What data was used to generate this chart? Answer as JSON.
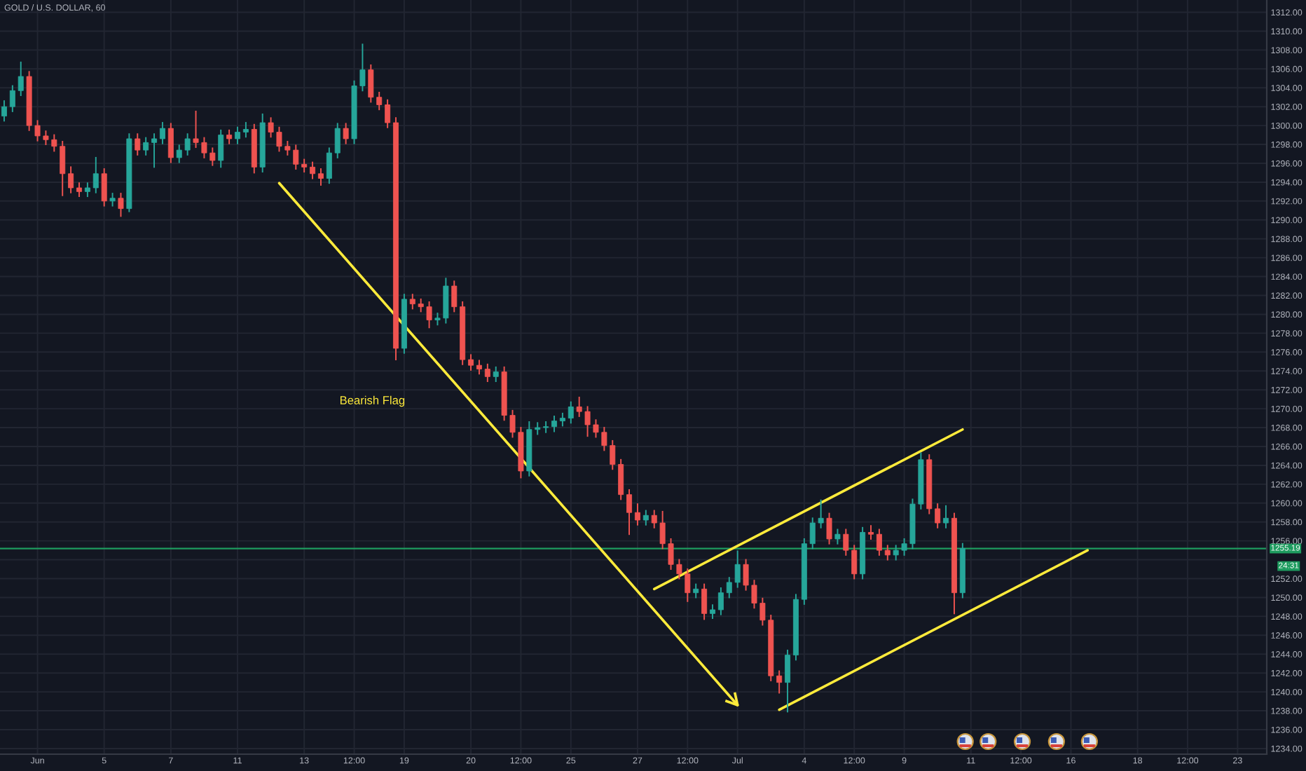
{
  "chart_data": {
    "type": "candlestick",
    "title": "GOLD / U.S. DOLLAR, 60",
    "categories": [
      null,
      null,
      null,
      null,
      "Jun",
      null,
      null,
      null,
      null,
      null,
      null,
      null,
      "5",
      null,
      null,
      null,
      null,
      null,
      null,
      null,
      "7",
      null,
      null,
      null,
      null,
      null,
      null,
      null,
      "11",
      null,
      null,
      null,
      null,
      null,
      null,
      null,
      "13",
      null,
      null,
      null,
      null,
      null,
      "12:00",
      null,
      null,
      null,
      null,
      null,
      "19",
      null,
      null,
      null,
      null,
      null,
      null,
      null,
      "20",
      null,
      null,
      null,
      null,
      null,
      "12:00",
      null,
      null,
      null,
      null,
      null,
      "25",
      null,
      null,
      null,
      null,
      null,
      null,
      null,
      "27",
      null,
      null,
      null,
      null,
      null,
      "12:00",
      null,
      null,
      null,
      null,
      null,
      "Jul",
      null,
      null,
      null,
      null,
      null,
      null,
      null,
      "4",
      null,
      null,
      null,
      null,
      null,
      "12:00",
      null,
      null,
      null,
      null,
      null,
      "9",
      null,
      null,
      null,
      null,
      null,
      null,
      null,
      "11",
      null,
      null,
      null,
      null,
      null,
      "12:00",
      null,
      null,
      null,
      null,
      null,
      "16",
      null,
      null,
      null,
      null,
      null,
      null,
      null,
      "18",
      null,
      null,
      null,
      null,
      null,
      "12:00",
      null,
      null,
      null,
      null,
      null,
      "23",
      null,
      null,
      null
    ],
    "ohlc": [
      [
        1301.0,
        1302.6,
        1300.5,
        1302.0
      ],
      [
        1302.0,
        1304.2,
        1301.5,
        1303.7
      ],
      [
        1303.7,
        1306.7,
        1303.2,
        1305.2
      ],
      [
        1305.2,
        1305.7,
        1299.5,
        1300.0
      ],
      [
        1300.0,
        1300.5,
        1298.4,
        1298.9
      ],
      [
        1298.9,
        1299.4,
        1298.0,
        1298.5
      ],
      [
        1298.5,
        1299.0,
        1297.3,
        1297.8
      ],
      [
        1297.8,
        1298.3,
        1292.6,
        1294.9
      ],
      [
        1294.9,
        1295.6,
        1292.9,
        1293.4
      ],
      [
        1293.4,
        1293.9,
        1292.5,
        1293.0
      ],
      [
        1293.0,
        1293.9,
        1292.5,
        1293.4
      ],
      [
        1293.4,
        1296.6,
        1292.9,
        1294.9
      ],
      [
        1294.9,
        1295.4,
        1291.5,
        1292.0
      ],
      [
        1292.0,
        1292.8,
        1291.5,
        1292.3
      ],
      [
        1292.3,
        1292.8,
        1290.4,
        1291.2
      ],
      [
        1291.2,
        1299.1,
        1290.9,
        1298.6
      ],
      [
        1298.6,
        1299.1,
        1296.9,
        1297.4
      ],
      [
        1297.4,
        1298.7,
        1296.9,
        1298.2
      ],
      [
        1298.2,
        1299.1,
        1295.6,
        1298.6
      ],
      [
        1298.6,
        1300.3,
        1298.1,
        1299.7
      ],
      [
        1299.7,
        1300.2,
        1296.1,
        1296.6
      ],
      [
        1296.6,
        1297.9,
        1296.1,
        1297.4
      ],
      [
        1297.4,
        1299.1,
        1296.9,
        1298.6
      ],
      [
        1298.6,
        1301.5,
        1297.7,
        1298.2
      ],
      [
        1298.2,
        1298.7,
        1296.6,
        1297.1
      ],
      [
        1297.1,
        1297.6,
        1295.8,
        1296.3
      ],
      [
        1296.3,
        1299.5,
        1295.6,
        1299.0
      ],
      [
        1299.0,
        1299.5,
        1298.1,
        1298.6
      ],
      [
        1298.6,
        1299.8,
        1298.1,
        1299.3
      ],
      [
        1299.3,
        1300.3,
        1298.8,
        1299.6
      ],
      [
        1299.6,
        1300.1,
        1295.0,
        1295.6
      ],
      [
        1295.6,
        1301.2,
        1295.1,
        1300.3
      ],
      [
        1300.3,
        1300.8,
        1298.8,
        1299.3
      ],
      [
        1299.3,
        1299.8,
        1297.3,
        1297.8
      ],
      [
        1297.8,
        1298.3,
        1296.9,
        1297.4
      ],
      [
        1297.4,
        1297.9,
        1295.4,
        1295.9
      ],
      [
        1295.9,
        1296.4,
        1295.1,
        1295.6
      ],
      [
        1295.6,
        1296.1,
        1294.4,
        1294.9
      ],
      [
        1294.9,
        1295.4,
        1293.7,
        1294.4
      ],
      [
        1294.4,
        1297.6,
        1293.9,
        1297.1
      ],
      [
        1297.1,
        1300.2,
        1296.6,
        1299.7
      ],
      [
        1299.7,
        1300.2,
        1298.1,
        1298.6
      ],
      [
        1298.6,
        1304.7,
        1298.1,
        1304.2
      ],
      [
        1304.2,
        1308.6,
        1303.7,
        1305.9
      ],
      [
        1305.9,
        1306.4,
        1302.5,
        1303.0
      ],
      [
        1303.0,
        1303.5,
        1301.7,
        1302.2
      ],
      [
        1302.2,
        1302.7,
        1299.8,
        1300.3
      ],
      [
        1300.3,
        1300.8,
        1275.2,
        1276.4
      ],
      [
        1276.4,
        1282.1,
        1275.9,
        1281.6
      ],
      [
        1281.6,
        1282.1,
        1280.6,
        1281.1
      ],
      [
        1281.1,
        1281.6,
        1280.3,
        1280.8
      ],
      [
        1280.8,
        1281.3,
        1278.6,
        1279.4
      ],
      [
        1279.4,
        1280.1,
        1278.9,
        1279.6
      ],
      [
        1279.6,
        1283.8,
        1279.1,
        1283.0
      ],
      [
        1283.0,
        1283.5,
        1280.3,
        1280.8
      ],
      [
        1280.8,
        1281.3,
        1274.7,
        1275.2
      ],
      [
        1275.2,
        1275.7,
        1274.1,
        1274.6
      ],
      [
        1274.6,
        1275.1,
        1273.7,
        1274.2
      ],
      [
        1274.2,
        1274.7,
        1272.9,
        1273.4
      ],
      [
        1273.4,
        1274.4,
        1272.9,
        1273.9
      ],
      [
        1273.9,
        1274.4,
        1268.8,
        1269.3
      ],
      [
        1269.3,
        1269.8,
        1267.0,
        1267.5
      ],
      [
        1267.5,
        1268.0,
        1262.7,
        1263.4
      ],
      [
        1263.4,
        1268.6,
        1262.9,
        1267.8
      ],
      [
        1267.8,
        1268.5,
        1267.3,
        1268.0
      ],
      [
        1268.0,
        1268.6,
        1267.5,
        1268.1
      ],
      [
        1268.1,
        1269.2,
        1267.6,
        1268.7
      ],
      [
        1268.7,
        1269.5,
        1268.2,
        1269.0
      ],
      [
        1269.0,
        1270.7,
        1268.5,
        1270.2
      ],
      [
        1270.2,
        1271.2,
        1269.2,
        1269.7
      ],
      [
        1269.7,
        1270.2,
        1267.1,
        1268.3
      ],
      [
        1268.3,
        1268.8,
        1267.0,
        1267.5
      ],
      [
        1267.5,
        1268.0,
        1265.6,
        1266.1
      ],
      [
        1266.1,
        1266.6,
        1263.6,
        1264.1
      ],
      [
        1264.1,
        1264.6,
        1260.4,
        1260.9
      ],
      [
        1260.9,
        1261.4,
        1256.7,
        1259.0
      ],
      [
        1259.0,
        1259.9,
        1257.7,
        1258.2
      ],
      [
        1258.2,
        1259.2,
        1257.7,
        1258.7
      ],
      [
        1258.7,
        1259.2,
        1257.4,
        1257.9
      ],
      [
        1257.9,
        1259.1,
        1255.2,
        1255.7
      ],
      [
        1255.7,
        1256.2,
        1253.0,
        1253.5
      ],
      [
        1253.5,
        1254.0,
        1252.0,
        1252.5
      ],
      [
        1252.5,
        1253.0,
        1249.6,
        1250.5
      ],
      [
        1250.5,
        1251.4,
        1250.0,
        1250.9
      ],
      [
        1250.9,
        1251.4,
        1247.7,
        1248.3
      ],
      [
        1248.3,
        1249.2,
        1247.8,
        1248.7
      ],
      [
        1248.7,
        1251.0,
        1248.2,
        1250.5
      ],
      [
        1250.5,
        1252.1,
        1250.0,
        1251.6
      ],
      [
        1251.6,
        1254.9,
        1251.1,
        1253.5
      ],
      [
        1253.5,
        1254.0,
        1250.8,
        1251.3
      ],
      [
        1251.3,
        1251.8,
        1248.9,
        1249.4
      ],
      [
        1249.4,
        1249.9,
        1247.1,
        1247.6
      ],
      [
        1247.6,
        1248.1,
        1241.2,
        1241.7
      ],
      [
        1241.7,
        1242.2,
        1239.9,
        1241.0
      ],
      [
        1241.0,
        1244.4,
        1237.9,
        1243.9
      ],
      [
        1243.9,
        1250.3,
        1243.4,
        1249.8
      ],
      [
        1249.8,
        1256.2,
        1249.3,
        1255.7
      ],
      [
        1255.7,
        1258.4,
        1255.2,
        1257.9
      ],
      [
        1257.9,
        1260.3,
        1257.4,
        1258.4
      ],
      [
        1258.4,
        1258.9,
        1255.7,
        1256.2
      ],
      [
        1256.2,
        1257.2,
        1255.7,
        1256.7
      ],
      [
        1256.7,
        1257.2,
        1254.5,
        1255.0
      ],
      [
        1255.0,
        1255.5,
        1252.0,
        1252.5
      ],
      [
        1252.5,
        1257.4,
        1252.0,
        1256.9
      ],
      [
        1256.9,
        1257.6,
        1256.2,
        1256.7
      ],
      [
        1256.7,
        1257.2,
        1254.5,
        1255.0
      ],
      [
        1255.0,
        1255.5,
        1254.0,
        1254.5
      ],
      [
        1254.5,
        1255.5,
        1254.0,
        1255.0
      ],
      [
        1255.0,
        1256.2,
        1254.5,
        1255.7
      ],
      [
        1255.7,
        1260.4,
        1255.2,
        1259.9
      ],
      [
        1259.9,
        1265.3,
        1259.4,
        1264.6
      ],
      [
        1264.6,
        1265.1,
        1258.9,
        1259.4
      ],
      [
        1259.4,
        1259.9,
        1257.4,
        1257.9
      ],
      [
        1257.9,
        1259.7,
        1257.4,
        1258.4
      ],
      [
        1258.4,
        1258.9,
        1248.3,
        1250.5
      ],
      [
        1250.5,
        1255.7,
        1250.0,
        1255.2
      ],
      null,
      null,
      null,
      null,
      null,
      null,
      null,
      null,
      null,
      null,
      null,
      null,
      null,
      null,
      null,
      null,
      null,
      null,
      null,
      null,
      null,
      null,
      null,
      null,
      null,
      null,
      null,
      null,
      null,
      null,
      null,
      null,
      null,
      null,
      null,
      null
    ],
    "colors": [
      "#26a69a",
      "#26a69a",
      "#26a69a",
      "#ef5350",
      "#ef5350",
      "#ef5350",
      "#ef5350",
      "#ef5350",
      "#ef5350",
      "#ef5350",
      "#26a69a",
      "#26a69a",
      "#ef5350",
      "#26a69a",
      "#ef5350",
      "#26a69a",
      "#ef5350",
      "#26a69a",
      "#26a69a",
      "#26a69a",
      "#ef5350",
      "#26a69a",
      "#26a69a",
      "#ef5350",
      "#ef5350",
      "#ef5350",
      "#26a69a",
      "#ef5350",
      "#26a69a",
      "#26a69a",
      "#ef5350",
      "#26a69a",
      "#ef5350",
      "#ef5350",
      "#ef5350",
      "#ef5350",
      "#ef5350",
      "#ef5350",
      "#ef5350",
      "#26a69a",
      "#26a69a",
      "#ef5350",
      "#26a69a",
      "#26a69a",
      "#ef5350",
      "#ef5350",
      "#ef5350",
      "#ef5350",
      "#26a69a",
      "#ef5350",
      "#ef5350",
      "#ef5350",
      "#26a69a",
      "#26a69a",
      "#ef5350",
      "#ef5350",
      "#ef5350",
      "#ef5350",
      "#ef5350",
      "#26a69a",
      "#ef5350",
      "#ef5350",
      "#ef5350",
      "#26a69a",
      "#26a69a",
      "#26a69a",
      "#26a69a",
      "#26a69a",
      "#26a69a",
      "#ef5350",
      "#ef5350",
      "#ef5350",
      "#ef5350",
      "#ef5350",
      "#ef5350",
      "#ef5350",
      "#ef5350",
      "#26a69a",
      "#ef5350",
      "#ef5350",
      "#ef5350",
      "#ef5350",
      "#ef5350",
      "#26a69a",
      "#ef5350",
      "#26a69a",
      "#26a69a",
      "#26a69a",
      "#26a69a",
      "#ef5350",
      "#ef5350",
      "#ef5350",
      "#ef5350",
      "#ef5350",
      "#26a69a",
      "#26a69a",
      "#26a69a",
      "#26a69a",
      "#26a69a",
      "#ef5350",
      "#26a69a",
      "#ef5350",
      "#ef5350",
      "#26a69a",
      "#ef5350",
      "#ef5350",
      "#ef5350",
      "#26a69a",
      "#26a69a",
      "#26a69a",
      "#26a69a",
      "#ef5350",
      "#ef5350",
      "#26a69a",
      "#ef5350",
      "#26a69a",
      null,
      null,
      null,
      null,
      null,
      null,
      null,
      null,
      null,
      null,
      null,
      null,
      null,
      null,
      null,
      null,
      null,
      null,
      null,
      null,
      null,
      null,
      null,
      null,
      null,
      null,
      null,
      null,
      null,
      null,
      null,
      null,
      null,
      null,
      null,
      null
    ],
    "series": [
      {
        "type": "line",
        "color": "#ffeb3b",
        "values": [
          null,
          null,
          null,
          null,
          null,
          null,
          null,
          null,
          null,
          null,
          null,
          null,
          null,
          null,
          null,
          null,
          null,
          null,
          null,
          null,
          null,
          null,
          null,
          null,
          null,
          null,
          null,
          null,
          null,
          null,
          null,
          null,
          null,
          1293.9,
          null,
          null,
          null,
          null,
          null,
          null,
          null,
          null,
          null,
          null,
          null,
          null,
          null,
          null,
          null,
          null,
          null,
          null,
          null,
          null,
          null,
          null,
          null,
          null,
          null,
          null,
          null,
          null,
          null,
          null,
          null,
          null,
          null,
          null,
          null,
          null,
          null,
          null,
          null,
          null,
          null,
          null,
          null,
          null,
          null,
          null,
          null,
          null,
          null,
          null,
          null,
          null,
          null,
          null,
          1238.6,
          null,
          null,
          null,
          null,
          null,
          null,
          null,
          null,
          null,
          null,
          null,
          null,
          null,
          null,
          null,
          null,
          null,
          null,
          null,
          null,
          null,
          null,
          null,
          null,
          null,
          null,
          null,
          null,
          null,
          null,
          null,
          null,
          null,
          null,
          null,
          null,
          null,
          null,
          null,
          null,
          null,
          null,
          null,
          null,
          null,
          null,
          null,
          null,
          null,
          null,
          null,
          null,
          null,
          null,
          null,
          null,
          null,
          null,
          null,
          null,
          null,
          null,
          null
        ]
      },
      {
        "type": "line",
        "color": "#ffeb3b",
        "values": [
          null,
          null,
          null,
          null,
          null,
          null,
          null,
          null,
          null,
          null,
          null,
          null,
          null,
          null,
          null,
          null,
          null,
          null,
          null,
          null,
          null,
          null,
          null,
          null,
          null,
          null,
          null,
          null,
          null,
          null,
          null,
          null,
          null,
          null,
          null,
          null,
          null,
          null,
          null,
          null,
          null,
          null,
          null,
          null,
          null,
          null,
          null,
          null,
          null,
          null,
          null,
          null,
          null,
          null,
          null,
          null,
          null,
          null,
          null,
          null,
          null,
          null,
          null,
          null,
          null,
          null,
          null,
          null,
          null,
          null,
          null,
          null,
          null,
          null,
          null,
          null,
          null,
          null,
          1250.9,
          null,
          null,
          null,
          null,
          null,
          null,
          null,
          null,
          null,
          null,
          null,
          null,
          null,
          null,
          null,
          null,
          null,
          null,
          null,
          null,
          null,
          null,
          null,
          null,
          null,
          null,
          null,
          null,
          null,
          null,
          null,
          null,
          null,
          null,
          null,
          null,
          1267.8,
          null,
          null,
          null,
          null,
          null,
          null,
          null,
          null,
          null,
          null,
          null,
          null,
          null,
          null,
          null,
          null,
          null,
          null,
          null,
          null,
          null,
          null,
          null,
          null,
          null,
          null,
          null,
          null,
          null,
          null,
          null,
          null,
          null,
          null,
          null,
          null
        ]
      },
      {
        "type": "line",
        "color": "#ffeb3b",
        "values": [
          null,
          null,
          null,
          null,
          null,
          null,
          null,
          null,
          null,
          null,
          null,
          null,
          null,
          null,
          null,
          null,
          null,
          null,
          null,
          null,
          null,
          null,
          null,
          null,
          null,
          null,
          null,
          null,
          null,
          null,
          null,
          null,
          null,
          null,
          null,
          null,
          null,
          null,
          null,
          null,
          null,
          null,
          null,
          null,
          null,
          null,
          null,
          null,
          null,
          null,
          null,
          null,
          null,
          null,
          null,
          null,
          null,
          null,
          null,
          null,
          null,
          null,
          null,
          null,
          null,
          null,
          null,
          null,
          null,
          null,
          null,
          null,
          null,
          null,
          null,
          null,
          null,
          null,
          null,
          null,
          null,
          null,
          null,
          null,
          null,
          null,
          null,
          null,
          null,
          null,
          null,
          null,
          null,
          1238.1,
          null,
          null,
          null,
          null,
          null,
          null,
          null,
          null,
          null,
          null,
          null,
          null,
          null,
          null,
          null,
          null,
          null,
          null,
          null,
          null,
          null,
          null,
          null,
          null,
          null,
          null,
          null,
          null,
          null,
          null,
          null,
          null,
          null,
          null,
          null,
          null,
          1255.0,
          null,
          null,
          null,
          null,
          null,
          null,
          null,
          null,
          null,
          null,
          null,
          null,
          null,
          null,
          null,
          null,
          null,
          null,
          null,
          null,
          null
        ]
      }
    ],
    "annotations": [
      "Bearish Flag",
      "24:31"
    ],
    "ref_lines": [
      {
        "axis": "y",
        "value": 1255.19,
        "label": "1255.19",
        "color": "#1e9c5f"
      }
    ],
    "ylim": [
      1233.4,
      1313.3
    ],
    "yticks": [
      {
        "value": 1234,
        "label": "1234.00"
      },
      {
        "value": 1236,
        "label": "1236.00"
      },
      {
        "value": 1238,
        "label": "1238.00"
      },
      {
        "value": 1240,
        "label": "1240.00"
      },
      {
        "value": 1242,
        "label": "1242.00"
      },
      {
        "value": 1244,
        "label": "1244.00"
      },
      {
        "value": 1246,
        "label": "1246.00"
      },
      {
        "value": 1248,
        "label": "1248.00"
      },
      {
        "value": 1250,
        "label": "1250.00"
      },
      {
        "value": 1252,
        "label": "1252.00"
      },
      {
        "value": 1254,
        "label": null
      },
      {
        "value": 1256,
        "label": "1256.00"
      },
      {
        "value": 1258,
        "label": "1258.00"
      },
      {
        "value": 1260,
        "label": "1260.00"
      },
      {
        "value": 1262,
        "label": "1262.00"
      },
      {
        "value": 1264,
        "label": "1264.00"
      },
      {
        "value": 1266,
        "label": "1266.00"
      },
      {
        "value": 1268,
        "label": "1268.00"
      },
      {
        "value": 1270,
        "label": "1270.00"
      },
      {
        "value": 1272,
        "label": "1272.00"
      },
      {
        "value": 1274,
        "label": "1274.00"
      },
      {
        "value": 1276,
        "label": "1276.00"
      },
      {
        "value": 1278,
        "label": "1278.00"
      },
      {
        "value": 1280,
        "label": "1280.00"
      },
      {
        "value": 1282,
        "label": "1282.00"
      },
      {
        "value": 1284,
        "label": "1284.00"
      },
      {
        "value": 1286,
        "label": "1286.00"
      },
      {
        "value": 1288,
        "label": "1288.00"
      },
      {
        "value": 1290,
        "label": "1290.00"
      },
      {
        "value": 1292,
        "label": "1292.00"
      },
      {
        "value": 1294,
        "label": "1294.00"
      },
      {
        "value": 1296,
        "label": "1296.00"
      },
      {
        "value": 1298,
        "label": "1298.00"
      },
      {
        "value": 1300,
        "label": "1300.00"
      },
      {
        "value": 1302,
        "label": "1302.00"
      },
      {
        "value": 1304,
        "label": "1304.00"
      },
      {
        "value": 1306,
        "label": "1306.00"
      },
      {
        "value": 1308,
        "label": "1308.00"
      },
      {
        "value": 1310,
        "label": "1310.00"
      },
      {
        "value": 1312,
        "label": "1312.00"
      }
    ],
    "grid": true
  }
}
